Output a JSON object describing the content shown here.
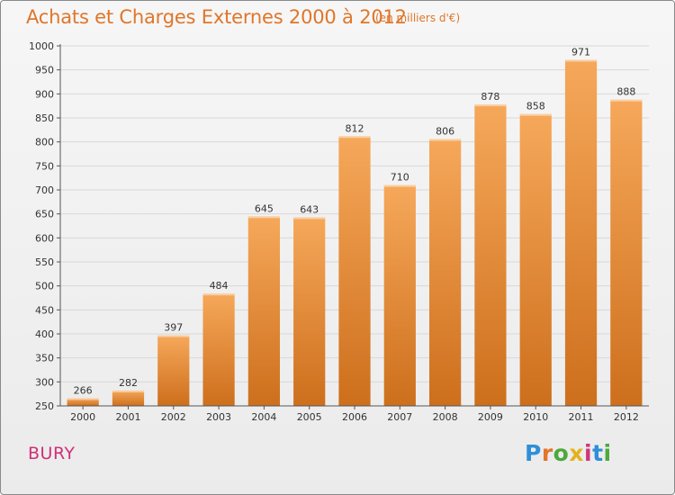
{
  "header": {
    "title": "Achats et Charges Externes 2000 à 2012",
    "subtitle": "(en milliers d'€)"
  },
  "footer": {
    "place": "BURY",
    "logo_text": "Proxiti",
    "logo_colors": [
      "#2f8fd8",
      "#e4752a",
      "#4ca93c",
      "#e3b31c",
      "#d0357b",
      "#2f8fd8",
      "#4ca93c"
    ]
  },
  "colors": {
    "bar_top": "#f6a85a",
    "bar_bottom": "#cd6f1c",
    "grid": "#d8d8d8",
    "axis": "#555555"
  },
  "chart_data": {
    "type": "bar",
    "title": "Achats et Charges Externes 2000 à 2012",
    "subtitle": "(en milliers d'€)",
    "categories": [
      "2000",
      "2001",
      "2002",
      "2003",
      "2004",
      "2005",
      "2006",
      "2007",
      "2008",
      "2009",
      "2010",
      "2011",
      "2012"
    ],
    "values": [
      266,
      282,
      397,
      484,
      645,
      643,
      812,
      710,
      806,
      878,
      858,
      971,
      888
    ],
    "ylim": [
      250,
      1000
    ],
    "yticks": [
      250,
      300,
      350,
      400,
      450,
      500,
      550,
      600,
      650,
      700,
      750,
      800,
      850,
      900,
      950,
      1000
    ],
    "grid": true,
    "data_labels": true,
    "xlabel": "",
    "ylabel": ""
  }
}
